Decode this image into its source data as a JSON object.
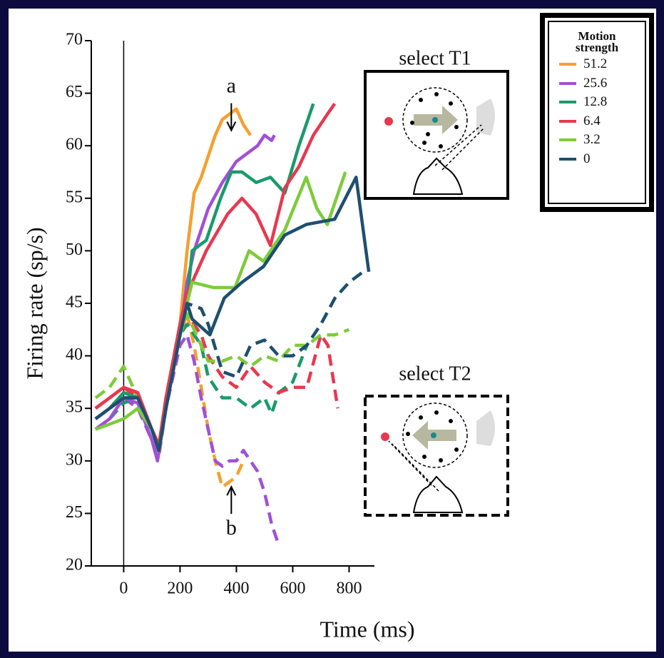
{
  "chart_data": {
    "type": "line",
    "ylabel": "Firing rate (sp/s)",
    "xlabel": "Time (ms)",
    "legend_title": "Motion strength",
    "legend": "upper right",
    "xlim": [
      -115,
      890
    ],
    "xticks": [
      0,
      200,
      400,
      600,
      800
    ],
    "ylim": [
      20,
      70
    ],
    "yticks": [
      20,
      25,
      30,
      35,
      40,
      45,
      50,
      55,
      60,
      65,
      70
    ],
    "reference_line_x": 0,
    "annotations": [
      {
        "text": "a",
        "x": 382,
        "y": 65
      },
      {
        "text": "b",
        "x": 382,
        "y": 24
      }
    ],
    "panels": [
      {
        "text": "select T1",
        "style": "solid"
      },
      {
        "text": "select T2",
        "style": "dashed"
      }
    ],
    "series": [
      {
        "name": "51.2",
        "color": "#f5a030",
        "dashed": false,
        "x": [
          -100,
          -50,
          0,
          50,
          100,
          125,
          150,
          200,
          225,
          250,
          275,
          300,
          325,
          350,
          375,
          400,
          425,
          450
        ],
        "values": [
          34,
          35,
          36.5,
          36,
          33,
          31,
          35,
          43,
          50,
          55.5,
          57,
          59,
          61,
          62.5,
          63,
          63.5,
          62,
          61
        ]
      },
      {
        "name": "25.6",
        "color": "#a050d8",
        "dashed": false,
        "x": [
          -100,
          -50,
          0,
          50,
          100,
          120,
          150,
          200,
          225,
          250,
          300,
          350,
          400,
          450,
          475,
          500,
          525,
          535
        ],
        "values": [
          33,
          34,
          36,
          35.5,
          32,
          30,
          35,
          42,
          47,
          50,
          54,
          56.5,
          58.5,
          59.5,
          60,
          61,
          60.5,
          61
        ]
      },
      {
        "name": "12.8",
        "color": "#1a9a6a",
        "dashed": false,
        "x": [
          -100,
          -50,
          0,
          50,
          100,
          125,
          150,
          200,
          225,
          243,
          293,
          344,
          382,
          420,
          470,
          521,
          572,
          622,
          673
        ],
        "values": [
          34,
          35,
          36.5,
          36,
          33,
          31,
          35,
          43,
          45,
          50,
          51,
          55,
          57.5,
          57.5,
          56.5,
          57,
          55.5,
          60,
          64
        ]
      },
      {
        "name": "6.4",
        "color": "#e8384f",
        "dashed": false,
        "x": [
          -100,
          -50,
          0,
          50,
          100,
          125,
          150,
          200,
          225,
          243,
          293,
          369,
          420,
          470,
          521,
          572,
          622,
          673,
          723,
          749
        ],
        "values": [
          35,
          36,
          37,
          36.5,
          33,
          31.5,
          36,
          43,
          46,
          47,
          50,
          53.5,
          55,
          53.5,
          50.5,
          56,
          58,
          61,
          63,
          64
        ]
      },
      {
        "name": "3.2",
        "color": "#7ccc3a",
        "dashed": false,
        "x": [
          -100,
          -50,
          0,
          50,
          100,
          125,
          150,
          200,
          225,
          243,
          319,
          395,
          445,
          496,
          572,
          648,
          686,
          723,
          787
        ],
        "values": [
          33,
          33.5,
          34,
          35,
          33,
          31,
          35,
          42,
          45,
          47,
          46.5,
          46.5,
          50,
          49,
          52,
          57,
          54,
          52.5,
          57.5
        ]
      },
      {
        "name": "0",
        "color": "#1e4f70",
        "dashed": false,
        "x": [
          -100,
          -50,
          0,
          50,
          100,
          125,
          150,
          200,
          225,
          243,
          306,
          357,
          420,
          496,
          572,
          648,
          749,
          825,
          850,
          870
        ],
        "values": [
          34,
          35,
          36,
          36,
          33,
          31,
          35,
          42,
          45,
          43.5,
          42,
          45.5,
          47,
          48.5,
          51.5,
          52.5,
          53,
          57,
          52,
          48
        ]
      },
      {
        "color": "#f5a030",
        "dashed": true,
        "x": [
          -100,
          -50,
          0,
          50,
          100,
          125,
          150,
          200,
          225,
          250,
          275,
          300,
          325,
          350,
          375,
          400,
          425
        ],
        "values": [
          35,
          36,
          37,
          36,
          33,
          31,
          35,
          42,
          44,
          41,
          37,
          33,
          30,
          27.5,
          28,
          28.5,
          30
        ]
      },
      {
        "color": "#a050d8",
        "dashed": true,
        "x": [
          -100,
          -50,
          0,
          50,
          100,
          125,
          150,
          200,
          225,
          250,
          275,
          300,
          325,
          350,
          375,
          400,
          425,
          450,
          475,
          500,
          525,
          550
        ],
        "values": [
          34,
          35,
          36,
          35,
          32,
          30.5,
          35,
          41,
          42,
          39.5,
          36,
          33,
          30,
          29.5,
          30,
          30,
          31,
          30,
          29,
          27,
          24,
          22
        ]
      },
      {
        "color": "#1a9a6a",
        "dashed": true,
        "x": [
          -100,
          -50,
          0,
          50,
          100,
          125,
          150,
          200,
          225,
          275,
          300,
          350,
          400,
          450,
          500,
          525,
          550,
          600,
          650
        ],
        "values": [
          33,
          34,
          35.5,
          36,
          33,
          31,
          35,
          42,
          43,
          41,
          38,
          36,
          36,
          35,
          36,
          34.5,
          36.5,
          37.5,
          41
        ]
      },
      {
        "color": "#e8384f",
        "dashed": true,
        "x": [
          -100,
          -50,
          0,
          50,
          100,
          125,
          150,
          200,
          225,
          275,
          300,
          350,
          400,
          450,
          500,
          550,
          600,
          650,
          700,
          725,
          760
        ],
        "values": [
          35,
          36,
          37,
          36,
          33,
          31.5,
          36,
          43,
          44,
          42,
          40,
          38,
          37,
          39,
          37.5,
          36.5,
          37,
          37,
          42,
          41,
          35
        ]
      },
      {
        "color": "#7ccc3a",
        "dashed": true,
        "x": [
          -100,
          -50,
          0,
          50,
          100,
          125,
          150,
          200,
          225,
          275,
          300,
          350,
          400,
          450,
          500,
          550,
          600,
          650,
          700,
          750,
          800
        ],
        "values": [
          36,
          37,
          39,
          36,
          33,
          31,
          35,
          42,
          44,
          41,
          39.5,
          39.5,
          40,
          39,
          40,
          39.5,
          41,
          41,
          42,
          42,
          42.5
        ]
      },
      {
        "color": "#1e4f70",
        "dashed": true,
        "x": [
          -100,
          -50,
          0,
          50,
          100,
          125,
          150,
          200,
          225,
          275,
          300,
          350,
          400,
          450,
          500,
          550,
          600,
          650,
          700,
          750,
          800,
          850
        ],
        "values": [
          34,
          35,
          36,
          36,
          33,
          31,
          35,
          42,
          45,
          44.5,
          43,
          38.5,
          38,
          41,
          41.5,
          40,
          40,
          41,
          43,
          45.5,
          47,
          48
        ]
      }
    ]
  }
}
